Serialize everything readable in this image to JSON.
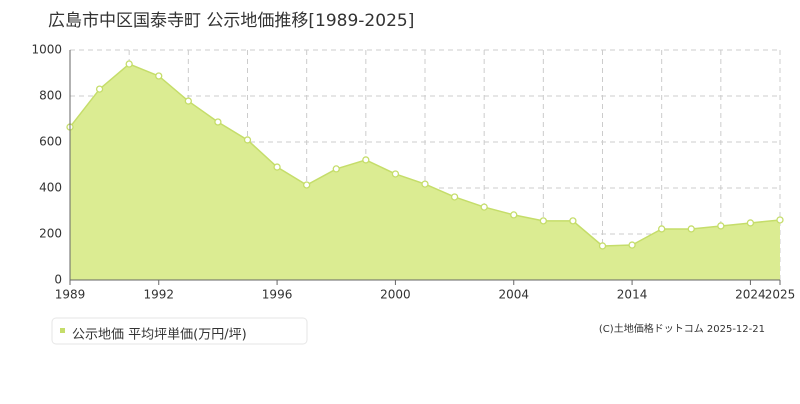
{
  "chart_data": {
    "type": "area",
    "title": "広島市中区国泰寺町 公示地価推移[1989-2025]",
    "categories": [
      "1989",
      null,
      null,
      "1992",
      null,
      null,
      null,
      "1996",
      null,
      null,
      null,
      "2000",
      null,
      null,
      null,
      "2004",
      null,
      null,
      null,
      "2014",
      null,
      null,
      null,
      "2024",
      "2025"
    ],
    "series": [
      {
        "name": "公示地価 平均坪単価(万円/坪)",
        "color": "#c5dd6a",
        "values": [
          665,
          830,
          939,
          887,
          778,
          687,
          609,
          491,
          413,
          483,
          522,
          461,
          417,
          361,
          317,
          283,
          257,
          257,
          148,
          152,
          222,
          222,
          235,
          248,
          261
        ]
      }
    ],
    "ylim": [
      0,
      1000
    ],
    "yticks": [
      0,
      200,
      400,
      600,
      800,
      1000
    ],
    "grid": true,
    "credit": "(C)土地価格ドットコム 2025-12-21"
  }
}
